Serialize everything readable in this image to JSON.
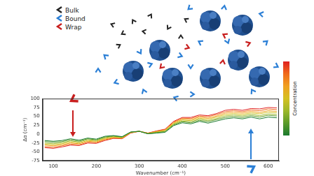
{
  "diagram": {
    "legend": [
      {
        "label": "Bulk",
        "color": "#222222"
      },
      {
        "label": "Bound",
        "color": "#2b7fd6"
      },
      {
        "label": "Wrap",
        "color": "#c81e1e"
      }
    ]
  },
  "colorbar": {
    "label": "Concentration",
    "colors": [
      "#e02020",
      "#f06a1a",
      "#f0a020",
      "#d4c020",
      "#9cb82a",
      "#5a9a2a",
      "#1b7a2e"
    ]
  },
  "chart_data": {
    "type": "line",
    "x_label": "Wavenumber (cm⁻¹)",
    "y_label": "Δα (cm⁻¹)",
    "x": [
      80,
      100,
      120,
      140,
      160,
      180,
      200,
      220,
      240,
      260,
      280,
      300,
      320,
      340,
      360,
      380,
      400,
      420,
      440,
      460,
      480,
      500,
      520,
      540,
      560,
      580,
      600,
      620
    ],
    "series": [
      {
        "color": "#1b7a2e",
        "values": [
          -18,
          -20,
          -18,
          -13,
          -17,
          -11,
          -14,
          -6,
          -4,
          -7,
          6,
          8,
          1,
          3,
          5,
          24,
          32,
          29,
          36,
          31,
          37,
          43,
          46,
          43,
          48,
          43,
          48,
          46
        ]
      },
      {
        "color": "#5a9a2a",
        "values": [
          -21,
          -23,
          -21,
          -16,
          -20,
          -13,
          -16,
          -8,
          -5,
          -8,
          6,
          8,
          1,
          4,
          7,
          26,
          35,
          32,
          39,
          35,
          41,
          47,
          50,
          47,
          52,
          48,
          53,
          51
        ]
      },
      {
        "color": "#9cb82a",
        "values": [
          -25,
          -27,
          -24,
          -19,
          -22,
          -15,
          -18,
          -10,
          -6,
          -9,
          5,
          8,
          2,
          5,
          8,
          28,
          37,
          35,
          42,
          38,
          44,
          51,
          54,
          51,
          56,
          52,
          57,
          55
        ]
      },
      {
        "color": "#d4c020",
        "values": [
          -28,
          -30,
          -27,
          -22,
          -25,
          -18,
          -20,
          -12,
          -8,
          -10,
          5,
          8,
          2,
          6,
          10,
          30,
          40,
          38,
          45,
          42,
          48,
          55,
          58,
          55,
          60,
          57,
          62,
          60
        ]
      },
      {
        "color": "#f0a020",
        "values": [
          -31,
          -33,
          -30,
          -25,
          -27,
          -20,
          -22,
          -14,
          -9,
          -11,
          4,
          8,
          2,
          7,
          11,
          32,
          42,
          41,
          48,
          45,
          51,
          59,
          62,
          59,
          64,
          61,
          66,
          64
        ]
      },
      {
        "color": "#f06a1a",
        "values": [
          -35,
          -37,
          -33,
          -28,
          -30,
          -23,
          -24,
          -16,
          -11,
          -12,
          4,
          8,
          3,
          8,
          13,
          34,
          45,
          44,
          51,
          49,
          55,
          63,
          66,
          63,
          68,
          66,
          71,
          69
        ]
      },
      {
        "color": "#e02020",
        "values": [
          -38,
          -40,
          -36,
          -31,
          -32,
          -25,
          -26,
          -18,
          -12,
          -13,
          3,
          8,
          3,
          9,
          14,
          36,
          47,
          47,
          54,
          52,
          58,
          67,
          70,
          67,
          72,
          71,
          75,
          74
        ]
      }
    ],
    "xlim": [
      75,
      625
    ],
    "xticks": [
      100,
      200,
      300,
      400,
      500,
      600
    ],
    "ylim": [
      -75,
      100
    ],
    "yticks": [
      -75,
      -50,
      -25,
      0,
      25,
      50,
      75,
      100
    ],
    "grid": false
  }
}
